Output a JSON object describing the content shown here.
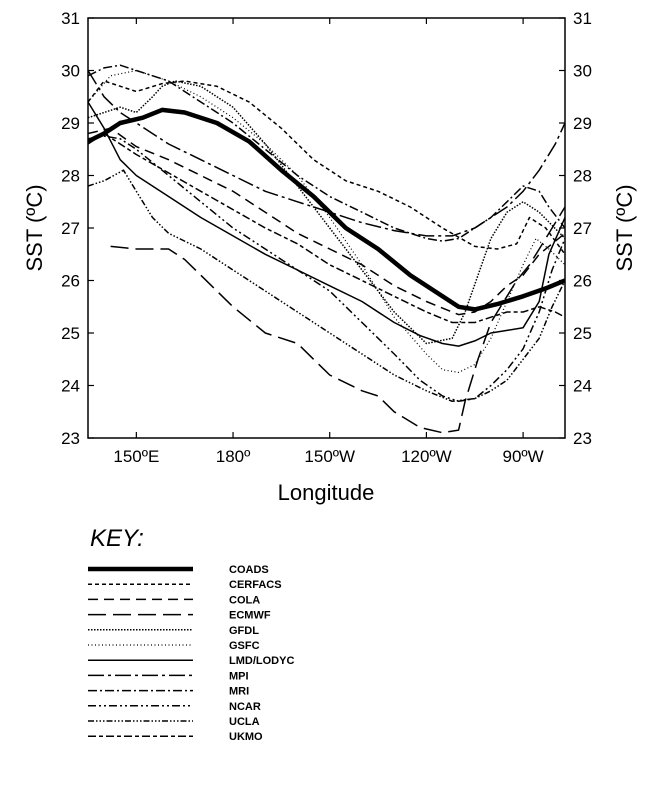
{
  "chart_data": {
    "type": "line",
    "title": "",
    "xlabel": "Longitude",
    "ylabel": "SST (ºC)",
    "ylim": [
      23,
      31
    ],
    "xlim": [
      135,
      283
    ],
    "y_ticks": [
      23,
      24,
      25,
      26,
      27,
      28,
      29,
      30,
      31
    ],
    "x_ticks": [
      {
        "value": 150,
        "label": "150ºE"
      },
      {
        "value": 180,
        "label": "180º"
      },
      {
        "value": 210,
        "label": "150ºW"
      },
      {
        "value": 240,
        "label": "120ºW"
      },
      {
        "value": 270,
        "label": "90ºW"
      }
    ],
    "grid": false,
    "legend_title": "KEY:",
    "legend_position": "bottom-left",
    "series": [
      {
        "name": "COADS",
        "style": "solid-thick",
        "x": [
          135,
          140,
          145,
          152,
          158,
          165,
          175,
          185,
          195,
          205,
          215,
          225,
          235,
          245,
          250,
          255,
          262,
          270,
          277,
          283
        ],
        "y": [
          28.65,
          28.8,
          29.0,
          29.1,
          29.25,
          29.2,
          29.0,
          28.65,
          28.1,
          27.6,
          27.0,
          26.6,
          26.1,
          25.7,
          25.5,
          25.45,
          25.55,
          25.7,
          25.85,
          26.0
        ]
      },
      {
        "name": "CERFACS",
        "style": "short-dash",
        "x": [
          135,
          140,
          150,
          158,
          165,
          175,
          185,
          195,
          205,
          215,
          225,
          235,
          245,
          255,
          262,
          268,
          272,
          277,
          283
        ],
        "y": [
          29.4,
          29.8,
          29.6,
          29.75,
          29.8,
          29.7,
          29.4,
          28.9,
          28.3,
          27.9,
          27.7,
          27.4,
          27.0,
          26.65,
          26.6,
          26.7,
          27.2,
          27.0,
          26.5
        ]
      },
      {
        "name": "COLA",
        "style": "medium-dash",
        "x": [
          135,
          142,
          150,
          160,
          170,
          180,
          190,
          200,
          210,
          220,
          230,
          240,
          250,
          255,
          260,
          265,
          270,
          275,
          283
        ],
        "y": [
          28.8,
          28.9,
          28.55,
          28.3,
          28.0,
          27.7,
          27.3,
          26.9,
          26.6,
          26.3,
          25.9,
          25.6,
          25.35,
          25.4,
          25.6,
          25.9,
          26.1,
          26.5,
          26.9
        ]
      },
      {
        "name": "ECMWF",
        "style": "long-dash",
        "x": [
          142,
          150,
          160,
          165,
          170,
          175,
          180,
          190,
          200,
          205,
          210,
          220,
          225,
          230,
          238,
          245,
          250,
          252,
          256,
          260,
          264,
          268,
          272,
          277,
          283
        ],
        "y": [
          26.65,
          26.6,
          26.6,
          26.4,
          26.1,
          25.8,
          25.5,
          25.0,
          24.8,
          24.5,
          24.2,
          23.9,
          23.8,
          23.5,
          23.2,
          23.1,
          23.15,
          23.7,
          24.5,
          25.2,
          25.6,
          26.0,
          26.3,
          26.8,
          27.4
        ]
      },
      {
        "name": "GFDL",
        "style": "fine-dot",
        "x": [
          135,
          140,
          145,
          150,
          155,
          158,
          162,
          170,
          180,
          190,
          200,
          210,
          220,
          230,
          240,
          248,
          252,
          256,
          260,
          265,
          270,
          275,
          283
        ],
        "y": [
          29.1,
          29.2,
          29.3,
          29.2,
          29.5,
          29.7,
          29.8,
          29.7,
          29.3,
          28.6,
          27.8,
          27.0,
          26.2,
          25.4,
          24.8,
          24.9,
          25.4,
          26.1,
          26.8,
          27.3,
          27.5,
          27.3,
          26.8
        ]
      },
      {
        "name": "GSFC",
        "style": "coarse-dot",
        "x": [
          135,
          142,
          150,
          160,
          170,
          180,
          190,
          200,
          210,
          220,
          230,
          240,
          245,
          250,
          255,
          260,
          265,
          270,
          274,
          278,
          283
        ],
        "y": [
          29.4,
          29.9,
          30.0,
          29.8,
          29.5,
          29.1,
          28.6,
          28.0,
          27.2,
          26.3,
          25.3,
          24.6,
          24.3,
          24.25,
          24.4,
          24.9,
          25.6,
          26.3,
          26.8,
          26.6,
          26.3
        ]
      },
      {
        "name": "LMD/LODYC",
        "style": "solid-thin",
        "x": [
          135,
          140,
          145,
          150,
          160,
          170,
          180,
          190,
          200,
          210,
          220,
          230,
          238,
          245,
          250,
          255,
          260,
          265,
          270,
          275,
          278,
          283
        ],
        "y": [
          29.4,
          28.9,
          28.3,
          28.0,
          27.6,
          27.2,
          26.85,
          26.5,
          26.2,
          25.9,
          25.6,
          25.2,
          24.95,
          24.8,
          24.75,
          24.85,
          25.0,
          25.05,
          25.1,
          25.6,
          26.5,
          27.2
        ]
      },
      {
        "name": "MPI",
        "style": "long-dash-dot",
        "x": [
          135,
          140,
          145,
          150,
          160,
          170,
          180,
          190,
          200,
          210,
          220,
          230,
          240,
          248,
          255,
          260,
          265,
          270,
          275,
          280,
          283
        ],
        "y": [
          30.0,
          29.5,
          29.2,
          29.0,
          28.6,
          28.3,
          28.0,
          27.7,
          27.5,
          27.3,
          27.1,
          26.95,
          26.85,
          26.85,
          27.0,
          27.2,
          27.4,
          27.7,
          28.1,
          28.6,
          29.0
        ]
      },
      {
        "name": "MRI",
        "style": "dash-dot",
        "x": [
          135,
          140,
          145,
          150,
          160,
          170,
          180,
          190,
          200,
          210,
          220,
          230,
          240,
          245,
          250,
          255,
          260,
          265,
          270,
          275,
          278,
          283
        ],
        "y": [
          29.9,
          30.05,
          30.1,
          30.0,
          29.8,
          29.4,
          29.0,
          28.5,
          28.0,
          27.6,
          27.3,
          27.0,
          26.8,
          26.75,
          26.8,
          27.0,
          27.2,
          27.5,
          27.8,
          27.7,
          27.4,
          27.0
        ]
      },
      {
        "name": "NCAR",
        "style": "dash-dot-dot",
        "x": [
          135,
          140,
          145,
          150,
          160,
          170,
          180,
          190,
          200,
          210,
          220,
          230,
          238,
          245,
          250,
          255,
          260,
          265,
          270,
          275,
          279,
          283
        ],
        "y": [
          28.7,
          28.75,
          28.7,
          28.5,
          28.0,
          27.5,
          27.0,
          26.6,
          26.2,
          25.8,
          25.2,
          24.6,
          24.1,
          23.8,
          23.7,
          23.75,
          24.0,
          24.3,
          24.7,
          25.4,
          26.2,
          26.8
        ]
      },
      {
        "name": "UCLA",
        "style": "dash-dot-dot-dot",
        "x": [
          135,
          140,
          146,
          150,
          155,
          160,
          170,
          180,
          190,
          200,
          210,
          220,
          230,
          240,
          248,
          255,
          260,
          265,
          270,
          275,
          279,
          283
        ],
        "y": [
          27.8,
          27.9,
          28.1,
          27.7,
          27.2,
          26.9,
          26.6,
          26.2,
          25.8,
          25.4,
          25.0,
          24.6,
          24.2,
          23.9,
          23.7,
          23.75,
          23.9,
          24.1,
          24.5,
          24.9,
          25.5,
          26.0
        ]
      },
      {
        "name": "UKMO",
        "style": "dash-short",
        "x": [
          135,
          140,
          145,
          150,
          160,
          170,
          180,
          190,
          200,
          210,
          220,
          230,
          240,
          248,
          255,
          260,
          265,
          270,
          275,
          280,
          283
        ],
        "y": [
          28.6,
          28.8,
          28.6,
          28.4,
          28.05,
          27.7,
          27.35,
          27.0,
          26.7,
          26.3,
          26.0,
          25.7,
          25.4,
          25.2,
          25.2,
          25.3,
          25.4,
          25.4,
          25.5,
          25.4,
          25.3
        ]
      }
    ]
  }
}
